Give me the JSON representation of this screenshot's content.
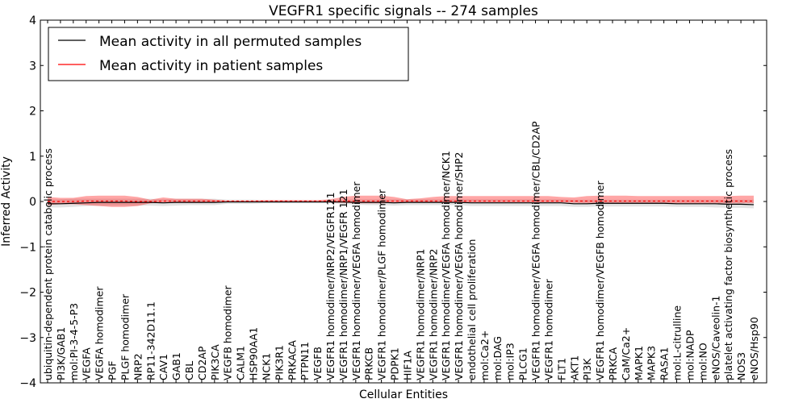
{
  "chart_data": {
    "type": "line",
    "title": "VEGFR1 specific signals -- 274 samples",
    "xlabel": "Cellular Entities",
    "ylabel": "Inferred Activity",
    "ylim": [
      -4,
      4
    ],
    "yticks": [
      -4,
      -3,
      -2,
      -1,
      0,
      1,
      2,
      3,
      4
    ],
    "ytick_labels": [
      "−4",
      "−3",
      "−2",
      "−1",
      "0",
      "1",
      "2",
      "3",
      "4"
    ],
    "legend_position": "top-left",
    "categories": [
      "ubiquitin-dependent protein catabolic process",
      "PI3K/GAB1",
      "mol:PI-3-4-5-P3",
      "VEGFA",
      "VEGFA homodimer",
      "PGF",
      "PLGF homodimer",
      "NRP2",
      "RP11-342D11.1",
      "CAV1",
      "GAB1",
      "CBL",
      "CD2AP",
      "PIK3CA",
      "VEGFB homodimer",
      "CALM1",
      "HSP90AA1",
      "NCK1",
      "PIK3R1",
      "PRKACA",
      "PTPN11",
      "VEGFB",
      "VEGFR1 homodimer/NRP2/VEGFR121",
      "VEGFR1 homodimer/NRP1/VEGFR 121",
      "VEGFR1 homodimer/VEGFA homodimer",
      "PRKCB",
      "VEGFR1 homodimer/PLGF homodimer",
      "PDPK1",
      "HIF1A",
      "VEGFR1 homodimer/NRP1",
      "VEGFR1 homodimer/NRP2",
      "VEGFR1 homodimer/VEGFA homodimer/NCK1",
      "VEGFR1 homodimer/VEGFA homodimer/SHP2",
      "endothelial cell proliferation",
      "mol:Ca2+",
      "mol:DAG",
      "mol:IP3",
      "PLCG1",
      "VEGFR1 homodimer/VEGFA homodimer/CBL/CD2AP",
      "VEGFR1 homodimer",
      "FLT1",
      "AKT1",
      "PI3K",
      "VEGFR1 homodimer/VEGFB homodimer",
      "PRKCA",
      "CaM/Ca2+",
      "MAPK1",
      "MAPK3",
      "RASA1",
      "mol:L-citrulline",
      "mol:NADP",
      "mol:NO",
      "eNOS/Caveolin-1",
      "platelet activating factor biosynthetic process",
      "NOS3",
      "eNOS/Hsp90"
    ],
    "series": [
      {
        "name": "Mean activity in all permuted samples",
        "color": "#000000",
        "values": [
          -0.05,
          -0.05,
          -0.04,
          -0.03,
          -0.02,
          -0.02,
          -0.02,
          -0.02,
          -0.02,
          -0.03,
          -0.02,
          -0.02,
          -0.02,
          -0.02,
          -0.01,
          -0.01,
          -0.01,
          -0.01,
          -0.01,
          -0.01,
          -0.01,
          -0.01,
          -0.01,
          -0.01,
          -0.02,
          -0.02,
          -0.02,
          -0.03,
          -0.02,
          -0.02,
          -0.02,
          -0.02,
          -0.02,
          -0.03,
          -0.03,
          -0.03,
          -0.03,
          -0.03,
          -0.03,
          -0.03,
          -0.03,
          -0.05,
          -0.05,
          -0.04,
          -0.04,
          -0.04,
          -0.04,
          -0.04,
          -0.04,
          -0.05,
          -0.05,
          -0.05,
          -0.05,
          -0.06,
          -0.06,
          -0.07
        ],
        "band_low": [
          -0.13,
          -0.13,
          -0.12,
          -0.1,
          -0.09,
          -0.09,
          -0.09,
          -0.09,
          -0.09,
          -0.1,
          -0.09,
          -0.08,
          -0.08,
          -0.08,
          -0.05,
          -0.05,
          -0.05,
          -0.04,
          -0.04,
          -0.04,
          -0.04,
          -0.04,
          -0.04,
          -0.05,
          -0.07,
          -0.08,
          -0.08,
          -0.09,
          -0.08,
          -0.08,
          -0.08,
          -0.08,
          -0.08,
          -0.1,
          -0.1,
          -0.1,
          -0.1,
          -0.1,
          -0.1,
          -0.1,
          -0.1,
          -0.12,
          -0.12,
          -0.11,
          -0.11,
          -0.11,
          -0.11,
          -0.11,
          -0.11,
          -0.12,
          -0.12,
          -0.12,
          -0.13,
          -0.14,
          -0.14,
          -0.15
        ],
        "band_high": [
          0.05,
          0.05,
          0.06,
          0.06,
          0.06,
          0.06,
          0.06,
          0.06,
          0.06,
          0.05,
          0.06,
          0.06,
          0.06,
          0.06,
          0.04,
          0.04,
          0.04,
          0.03,
          0.03,
          0.03,
          0.03,
          0.03,
          0.03,
          0.04,
          0.05,
          0.05,
          0.05,
          0.05,
          0.05,
          0.05,
          0.05,
          0.05,
          0.05,
          0.05,
          0.05,
          0.05,
          0.05,
          0.05,
          0.05,
          0.05,
          0.05,
          0.04,
          0.04,
          0.04,
          0.04,
          0.04,
          0.04,
          0.04,
          0.04,
          0.04,
          0.04,
          0.04,
          0.04,
          0.04,
          0.04,
          0.04
        ]
      },
      {
        "name": "Mean activity in patient samples",
        "color": "#ff0000",
        "values": [
          0.0,
          0.0,
          0.0,
          0.01,
          0.01,
          0.01,
          0.01,
          0.0,
          0.0,
          0.01,
          0.01,
          0.01,
          0.01,
          0.01,
          0.01,
          0.01,
          0.01,
          0.01,
          0.01,
          0.01,
          0.01,
          0.01,
          0.01,
          0.01,
          0.01,
          0.01,
          0.01,
          0.01,
          0.01,
          0.01,
          0.01,
          0.01,
          0.01,
          0.01,
          0.01,
          0.01,
          0.01,
          0.01,
          0.01,
          0.01,
          0.01,
          0.01,
          0.01,
          0.01,
          0.01,
          0.01,
          0.01,
          0.01,
          0.01,
          0.01,
          0.01,
          0.01,
          0.01,
          0.01,
          0.01,
          0.01
        ],
        "band_low": [
          -0.08,
          -0.06,
          -0.06,
          -0.08,
          -0.1,
          -0.12,
          -0.12,
          -0.1,
          -0.04,
          -0.02,
          -0.03,
          -0.03,
          -0.03,
          -0.02,
          -0.01,
          -0.01,
          -0.01,
          -0.01,
          -0.01,
          -0.01,
          -0.01,
          -0.01,
          -0.02,
          -0.03,
          -0.04,
          -0.04,
          -0.04,
          -0.03,
          -0.02,
          -0.02,
          -0.02,
          -0.02,
          -0.02,
          -0.02,
          -0.02,
          -0.02,
          -0.02,
          -0.02,
          -0.02,
          -0.02,
          -0.02,
          -0.03,
          -0.04,
          -0.04,
          -0.04,
          -0.04,
          -0.04,
          -0.04,
          -0.04,
          -0.04,
          -0.04,
          -0.04,
          -0.04,
          -0.04,
          -0.04,
          -0.04
        ],
        "band_high": [
          0.1,
          0.08,
          0.08,
          0.12,
          0.13,
          0.13,
          0.13,
          0.1,
          0.04,
          0.09,
          0.06,
          0.06,
          0.06,
          0.04,
          0.02,
          0.02,
          0.02,
          0.03,
          0.03,
          0.03,
          0.03,
          0.03,
          0.05,
          0.1,
          0.13,
          0.13,
          0.13,
          0.1,
          0.05,
          0.07,
          0.1,
          0.12,
          0.12,
          0.12,
          0.12,
          0.12,
          0.12,
          0.12,
          0.12,
          0.12,
          0.1,
          0.09,
          0.12,
          0.13,
          0.13,
          0.13,
          0.12,
          0.12,
          0.12,
          0.12,
          0.12,
          0.12,
          0.12,
          0.12,
          0.13,
          0.13
        ]
      }
    ]
  }
}
